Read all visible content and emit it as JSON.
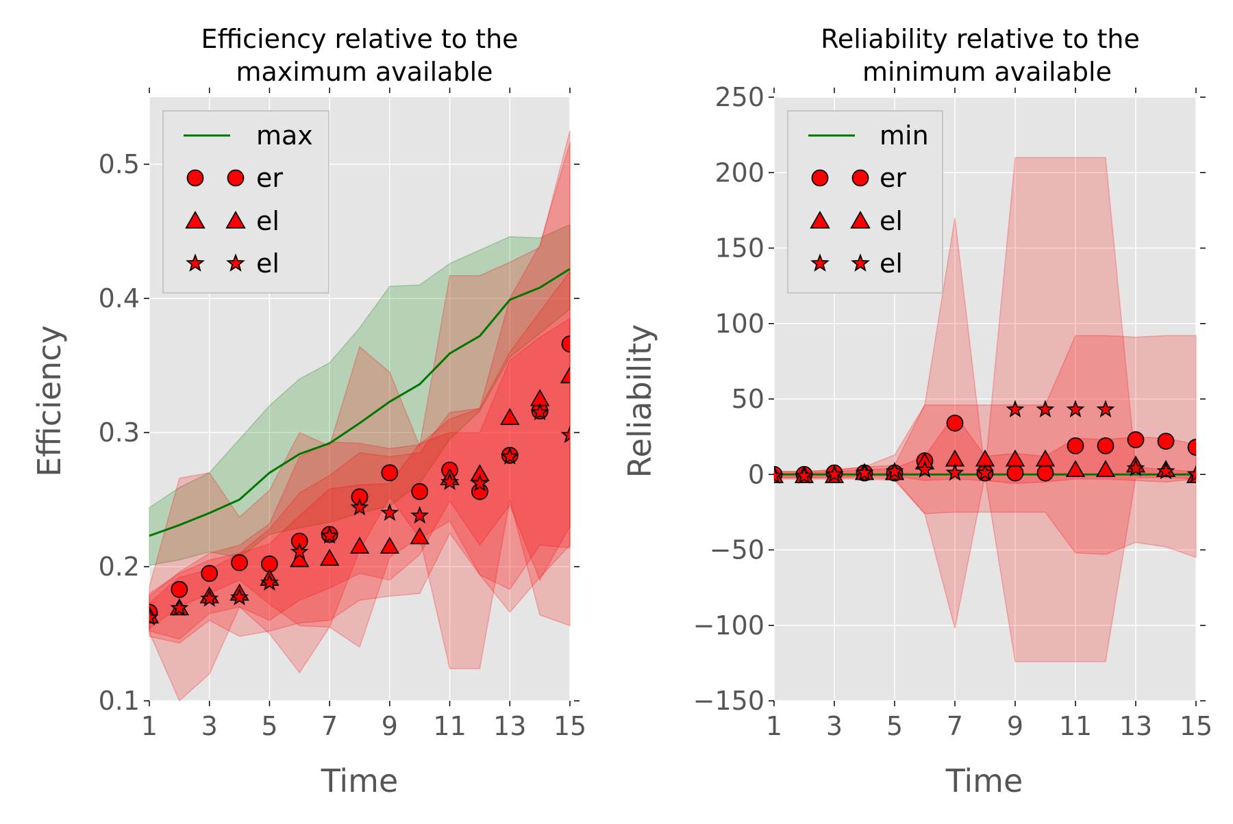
{
  "colors": {
    "axes_bg": "#e5e5e5",
    "grid": "#ffffff",
    "max_min_line": "#007700",
    "band_green": "#008000",
    "band_red": "#ff0000",
    "marker_red": "#ff0000",
    "marker_edge": "#000000",
    "tick_text": "#555555"
  },
  "chart_data": [
    {
      "type": "line",
      "title_line1": "Efficiency relative to the",
      "title_line2": "maximum available",
      "xlabel": "Time",
      "ylabel": "Efficiency",
      "xlim": [
        1,
        15
      ],
      "ylim": [
        0.1,
        0.55
      ],
      "xticks": [
        1,
        3,
        5,
        7,
        9,
        11,
        13,
        15
      ],
      "xtick_labels": [
        "1",
        "3",
        "5",
        "7",
        "9",
        "11",
        "13",
        "15"
      ],
      "yticks": [
        0.1,
        0.2,
        0.3,
        0.4,
        0.5
      ],
      "ytick_labels": [
        "0.1",
        "0.2",
        "0.3",
        "0.4",
        "0.5"
      ],
      "grid": true,
      "legend_position": "upper-left",
      "x": [
        1,
        2,
        3,
        4,
        5,
        6,
        7,
        8,
        9,
        10,
        11,
        12,
        13,
        14,
        15
      ],
      "series": [
        {
          "name": "max",
          "kind": "line",
          "color": "#007700",
          "values": [
            0.223,
            0.231,
            0.24,
            0.25,
            0.27,
            0.284,
            0.292,
            0.307,
            0.323,
            0.336,
            0.359,
            0.372,
            0.399,
            0.408,
            0.422
          ]
        },
        {
          "name": "er",
          "kind": "marker",
          "marker": "circle",
          "values": [
            0.166,
            0.183,
            0.195,
            0.203,
            0.202,
            0.219,
            0.224,
            0.252,
            0.27,
            0.256,
            0.272,
            0.256,
            0.283,
            0.316,
            0.366
          ]
        },
        {
          "name": "el",
          "kind": "marker",
          "marker": "triangle",
          "values": [
            0.163,
            0.169,
            0.178,
            0.18,
            0.191,
            0.205,
            0.206,
            0.215,
            0.215,
            0.222,
            0.266,
            0.269,
            0.311,
            0.325,
            0.342
          ]
        },
        {
          "name": "el",
          "kind": "marker",
          "marker": "star",
          "values": [
            0.162,
            0.169,
            0.176,
            0.177,
            0.188,
            0.211,
            0.223,
            0.244,
            0.24,
            0.238,
            0.263,
            0.262,
            0.282,
            0.315,
            0.298
          ]
        }
      ],
      "bands": [
        {
          "color": "#008000",
          "upper": [
            0.244,
            0.259,
            0.27,
            0.295,
            0.32,
            0.34,
            0.352,
            0.378,
            0.409,
            0.41,
            0.426,
            0.436,
            0.446,
            0.445,
            0.455
          ],
          "lower": [
            0.201,
            0.205,
            0.211,
            0.207,
            0.224,
            0.229,
            0.233,
            0.24,
            0.245,
            0.262,
            0.295,
            0.316,
            0.356,
            0.374,
            0.392
          ]
        },
        {
          "color": "#ff0000",
          "upper": [
            0.185,
            0.266,
            0.27,
            0.237,
            0.257,
            0.3,
            0.29,
            0.364,
            0.345,
            0.29,
            0.417,
            0.417,
            0.427,
            0.438,
            0.525
          ],
          "lower": [
            0.151,
            0.1,
            0.12,
            0.17,
            0.15,
            0.121,
            0.155,
            0.14,
            0.207,
            0.222,
            0.124,
            0.124,
            0.25,
            0.164,
            0.156
          ]
        },
        {
          "color": "#ff0000",
          "upper": [
            0.178,
            0.196,
            0.21,
            0.216,
            0.232,
            0.282,
            0.293,
            0.292,
            0.288,
            0.291,
            0.31,
            0.318,
            0.4,
            0.44,
            0.516
          ]
        },
        {
          "color": "#ff0000",
          "upper": [
            0.173,
            0.192,
            0.198,
            0.21,
            0.217,
            0.238,
            0.258,
            0.261,
            0.262,
            0.292,
            0.3,
            0.3,
            0.354,
            0.371,
            0.385
          ],
          "lower": [
            0.152,
            0.146,
            0.165,
            0.17,
            0.16,
            0.175,
            0.184,
            0.195,
            0.19,
            0.209,
            0.249,
            0.216,
            0.246,
            0.19,
            0.23
          ]
        },
        {
          "color": "#ff0000",
          "upper": [
            0.18,
            0.195,
            0.205,
            0.21,
            0.228,
            0.255,
            0.268,
            0.285,
            0.282,
            0.285,
            0.315,
            0.318,
            0.36,
            0.39,
            0.42
          ],
          "lower": [
            0.148,
            0.143,
            0.16,
            0.148,
            0.152,
            0.158,
            0.16,
            0.175,
            0.178,
            0.18,
            0.225,
            0.194,
            0.183,
            0.216,
            0.214
          ]
        }
      ]
    },
    {
      "type": "line",
      "title_line1": "Reliability relative to the",
      "title_line2": "minimum available",
      "xlabel": "Time",
      "ylabel": "Reliability",
      "xlim": [
        1,
        15
      ],
      "ylim": [
        -150,
        250
      ],
      "xticks": [
        1,
        3,
        5,
        7,
        9,
        11,
        13,
        15
      ],
      "xtick_labels": [
        "1",
        "3",
        "5",
        "7",
        "9",
        "11",
        "13",
        "15"
      ],
      "yticks": [
        -150,
        -100,
        -50,
        0,
        50,
        100,
        150,
        200,
        250
      ],
      "ytick_labels": [
        "−150",
        "−100",
        "−50",
        "0",
        "50",
        "100",
        "150",
        "200",
        "250"
      ],
      "grid": true,
      "legend_position": "upper-left",
      "x": [
        1,
        2,
        3,
        4,
        5,
        6,
        7,
        8,
        9,
        10,
        11,
        12,
        13,
        14,
        15
      ],
      "series": [
        {
          "name": "min",
          "kind": "line",
          "color": "#007700",
          "values": [
            0,
            0,
            0,
            0,
            0,
            0,
            0,
            0,
            0,
            0,
            0,
            0,
            0,
            0,
            0
          ]
        },
        {
          "name": "er",
          "kind": "marker",
          "marker": "circle",
          "values": [
            0,
            0,
            1,
            1,
            1,
            9,
            34,
            1,
            1,
            1,
            19,
            19,
            23,
            22,
            18
          ]
        },
        {
          "name": "el",
          "kind": "marker",
          "marker": "triangle",
          "values": [
            -1,
            -1,
            -1,
            1,
            1,
            8,
            10,
            10,
            10,
            10,
            3,
            3,
            6,
            3,
            -1
          ]
        },
        {
          "name": "el",
          "kind": "marker",
          "marker": "star",
          "values": [
            -1,
            -1,
            0,
            1,
            2,
            3,
            1,
            1,
            43,
            43,
            43,
            43,
            4,
            2,
            0
          ]
        }
      ],
      "bands": [
        {
          "color": "#ff0000",
          "upper": [
            2,
            2,
            3,
            5,
            6,
            46,
            170,
            2,
            210,
            210,
            210,
            210,
            5,
            3,
            2
          ],
          "lower": [
            -3,
            -3,
            -3,
            -3,
            -4,
            -26,
            -102,
            -1,
            -124,
            -124,
            -124,
            -124,
            -2,
            -2,
            -3
          ]
        },
        {
          "color": "#ff0000",
          "upper": [
            2,
            2,
            3,
            5,
            13,
            46,
            46,
            46,
            46,
            46,
            92,
            92,
            91,
            92,
            92
          ],
          "lower": [
            -2,
            -2,
            -2,
            -2,
            -3,
            -26,
            -25,
            -25,
            -25,
            -25,
            -52,
            -53,
            -45,
            -48,
            -55
          ]
        },
        {
          "color": "#ff0000",
          "upper": [
            1,
            1,
            2,
            3,
            4,
            12,
            40,
            12,
            14,
            12,
            24,
            23,
            25,
            24,
            20
          ],
          "lower": [
            -2,
            -2,
            -2,
            -1,
            -1,
            -4,
            -3,
            -4,
            -6,
            -5,
            -3,
            -3,
            -4,
            -5,
            -3
          ]
        }
      ]
    }
  ]
}
